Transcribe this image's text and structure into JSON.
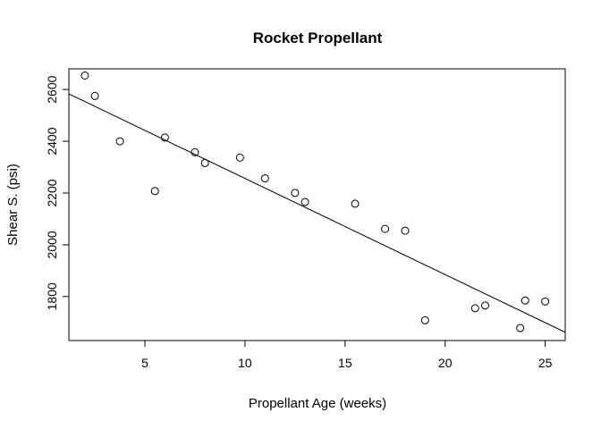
{
  "chart_data": {
    "type": "scatter",
    "title": "Rocket Propellant",
    "xlabel": "Propellant Age (weeks)",
    "ylabel": "Shear S. (psi)",
    "xlim": [
      1.2,
      26.0
    ],
    "ylim": [
      1630,
      2680
    ],
    "xticks": [
      5,
      10,
      15,
      20,
      25
    ],
    "yticks": [
      1800,
      2000,
      2200,
      2400,
      2600
    ],
    "grid": false,
    "point_style": "open circle",
    "points": [
      {
        "x": 2.0,
        "y": 2654.2
      },
      {
        "x": 2.5,
        "y": 2575.0
      },
      {
        "x": 3.75,
        "y": 2400.0
      },
      {
        "x": 5.5,
        "y": 2207.5
      },
      {
        "x": 6.0,
        "y": 2414.4
      },
      {
        "x": 7.5,
        "y": 2357.9
      },
      {
        "x": 8.0,
        "y": 2316.0
      },
      {
        "x": 9.75,
        "y": 2336.75
      },
      {
        "x": 11.0,
        "y": 2256.7
      },
      {
        "x": 12.5,
        "y": 2200.5
      },
      {
        "x": 13.0,
        "y": 2165.2
      },
      {
        "x": 15.5,
        "y": 2158.7
      },
      {
        "x": 17.0,
        "y": 2061.3
      },
      {
        "x": 18.0,
        "y": 2054.5
      },
      {
        "x": 19.0,
        "y": 1708.3
      },
      {
        "x": 21.5,
        "y": 1754.7
      },
      {
        "x": 22.0,
        "y": 1765.3
      },
      {
        "x": 23.75,
        "y": 1678.15
      },
      {
        "x": 24.0,
        "y": 1784.7
      },
      {
        "x": 25.0,
        "y": 1780.7
      }
    ],
    "regression_line": {
      "intercept": 2627.82,
      "slope": -37.15
    }
  }
}
